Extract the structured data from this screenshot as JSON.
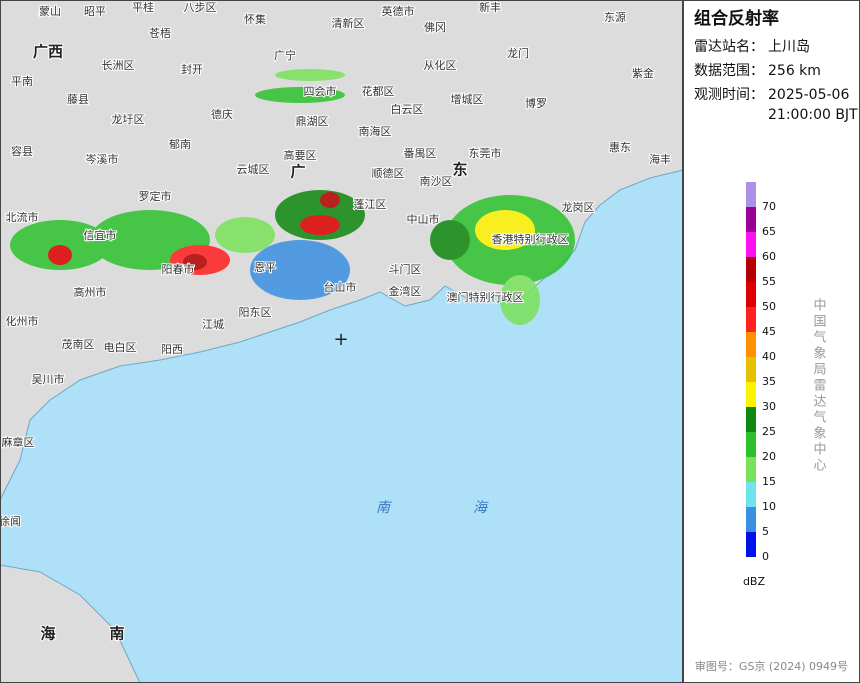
{
  "panel": {
    "title": "组合反射率",
    "rows": [
      {
        "label": "雷达站名：",
        "value": "上川岛"
      },
      {
        "label": "数据范围：",
        "value": "256 km"
      },
      {
        "label": "观测时间：",
        "value": "2025-05-06",
        "value2": "21:00:00 BJT"
      }
    ],
    "legend": {
      "unit": "dBZ",
      "levels": [
        {
          "value": 0,
          "color": "#0010e8"
        },
        {
          "value": 5,
          "color": "#3b8fe0"
        },
        {
          "value": 10,
          "color": "#6fe3ee"
        },
        {
          "value": 15,
          "color": "#7ae25a"
        },
        {
          "value": 20,
          "color": "#2ec12e"
        },
        {
          "value": 25,
          "color": "#0f880f"
        },
        {
          "value": 30,
          "color": "#fff200"
        },
        {
          "value": 35,
          "color": "#e6bf00"
        },
        {
          "value": 40,
          "color": "#ff9000"
        },
        {
          "value": 45,
          "color": "#ff2020"
        },
        {
          "value": 50,
          "color": "#dd0000"
        },
        {
          "value": 55,
          "color": "#b40000"
        },
        {
          "value": 60,
          "color": "#ff10f0"
        },
        {
          "value": 65,
          "color": "#980098"
        },
        {
          "value": 70,
          "color": "#ad90ea"
        }
      ]
    },
    "source": "中国气象局雷达气象中心",
    "footer": "审图号：GS京 (2024) 0949号"
  },
  "map": {
    "labels": [
      "蒙山",
      "昭平",
      "平桂",
      "八步区",
      "怀集",
      "清新区",
      "英德市",
      "佛冈",
      "新丰",
      "东源",
      "长洲区",
      "苍梧",
      "封开",
      "广宁",
      "四会市",
      "花都区",
      "从化区",
      "龙门",
      "紫金",
      "平南",
      "藤县",
      "增城区",
      "博罗",
      "龙圩区",
      "德庆",
      "鼎湖区",
      "白云区",
      "南海区",
      "容县",
      "岑溪市",
      "郁南",
      "高要区",
      "番禺区",
      "东莞市",
      "惠东",
      "海丰",
      "云城区",
      "顺德区",
      "南沙区",
      "北流市",
      "罗定市",
      "龙岗区",
      "中山市",
      "信宜市",
      "阳春市",
      "香港特别行政区",
      "蓬江区",
      "高州市",
      "恩平",
      "台山市",
      "斗门区",
      "金湾区",
      "澳门特别行政区",
      "化州市",
      "阳东区",
      "江城",
      "茂南区",
      "电白区",
      "阳西",
      "吴川市",
      "麻章区",
      "徐闻",
      "广",
      "东",
      "南",
      "海",
      "海",
      "南",
      "广西"
    ]
  }
}
